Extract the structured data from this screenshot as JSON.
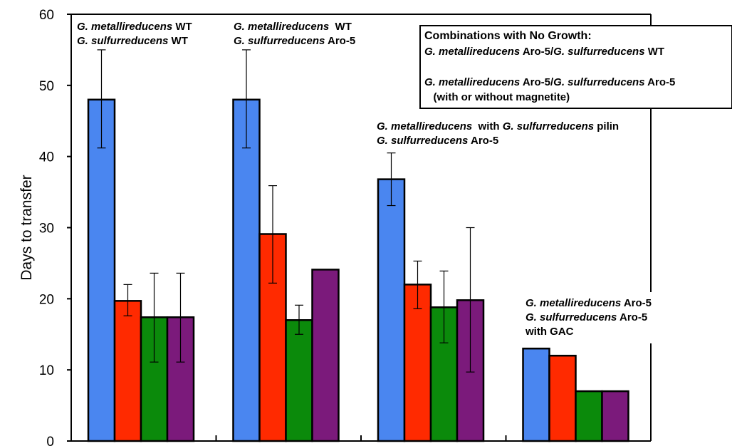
{
  "chart_data": {
    "type": "bar",
    "ylabel": "Days to transfer",
    "ylim": [
      0,
      60
    ],
    "yticks": [
      "0",
      "10",
      "20",
      "30",
      "40",
      "50",
      "60"
    ],
    "grid": false,
    "colors": [
      "#4a86f0",
      "#ff2a00",
      "#0b8a0b",
      "#7b1a7b"
    ],
    "groups": [
      {
        "label_lines": [
          [
            {
              "t": "G. metallireducens",
              "i": true
            },
            {
              "t": " WT",
              "i": false
            }
          ],
          [
            {
              "t": "G. sulfurreducens",
              "i": true
            },
            {
              "t": " WT",
              "i": false
            }
          ]
        ],
        "values": [
          48,
          19.7,
          17.4,
          17.4
        ],
        "errors": [
          [
            41.2,
            55
          ],
          [
            17.6,
            22
          ],
          [
            11.1,
            23.6
          ],
          [
            11.1,
            23.6
          ]
        ]
      },
      {
        "label_lines": [
          [
            {
              "t": "G. metallireducens",
              "i": true
            },
            {
              "t": "  WT",
              "i": false
            }
          ],
          [
            {
              "t": "G. sulfurreducens",
              "i": true
            },
            {
              "t": " Aro-5",
              "i": false
            }
          ]
        ],
        "values": [
          48,
          29.1,
          17,
          24.1
        ],
        "errors": [
          [
            41.2,
            55
          ],
          [
            22.2,
            35.9
          ],
          [
            15,
            19.1
          ],
          null
        ]
      },
      {
        "label_lines": [
          [
            {
              "t": "G. metallireducens",
              "i": true
            },
            {
              "t": "  with ",
              "i": false
            },
            {
              "t": "G. sulfurreducens",
              "i": true
            },
            {
              "t": " pilin",
              "i": false
            }
          ],
          [
            {
              "t": "G. sulfurreducens",
              "i": true
            },
            {
              "t": " Aro-5",
              "i": false
            }
          ]
        ],
        "values": [
          36.8,
          22,
          18.8,
          19.8
        ],
        "errors": [
          [
            33.1,
            40.5
          ],
          [
            18.6,
            25.3
          ],
          [
            13.8,
            23.9
          ],
          [
            9.7,
            30
          ]
        ]
      },
      {
        "label_lines": [
          [
            {
              "t": "G. metallireducens",
              "i": true
            },
            {
              "t": " Aro-5",
              "i": false
            }
          ],
          [
            {
              "t": "G. sulfurreducens",
              "i": true
            },
            {
              "t": " Aro-5",
              "i": false
            }
          ],
          [
            {
              "t": "with GAC",
              "i": false
            }
          ]
        ],
        "values": [
          13,
          12,
          7,
          7
        ],
        "errors": [
          null,
          null,
          null,
          null
        ]
      }
    ],
    "no_growth_box": {
      "title": "Combinations with No Growth:",
      "lines": [
        [
          {
            "t": "G. metallireducens",
            "i": true
          },
          {
            "t": " Aro-5/",
            "i": false
          },
          {
            "t": "G. sulfurreducens",
            "i": true
          },
          {
            "t": " WT",
            "i": false
          }
        ],
        [
          {
            "t": "G. metallireducens",
            "i": true
          },
          {
            "t": " Aro-5/",
            "i": false
          },
          {
            "t": "G. sulfurreducens",
            "i": true
          },
          {
            "t": " Aro-5",
            "i": false
          }
        ],
        [
          {
            "t": "   (with or without magnetite)",
            "i": false
          }
        ]
      ]
    }
  }
}
